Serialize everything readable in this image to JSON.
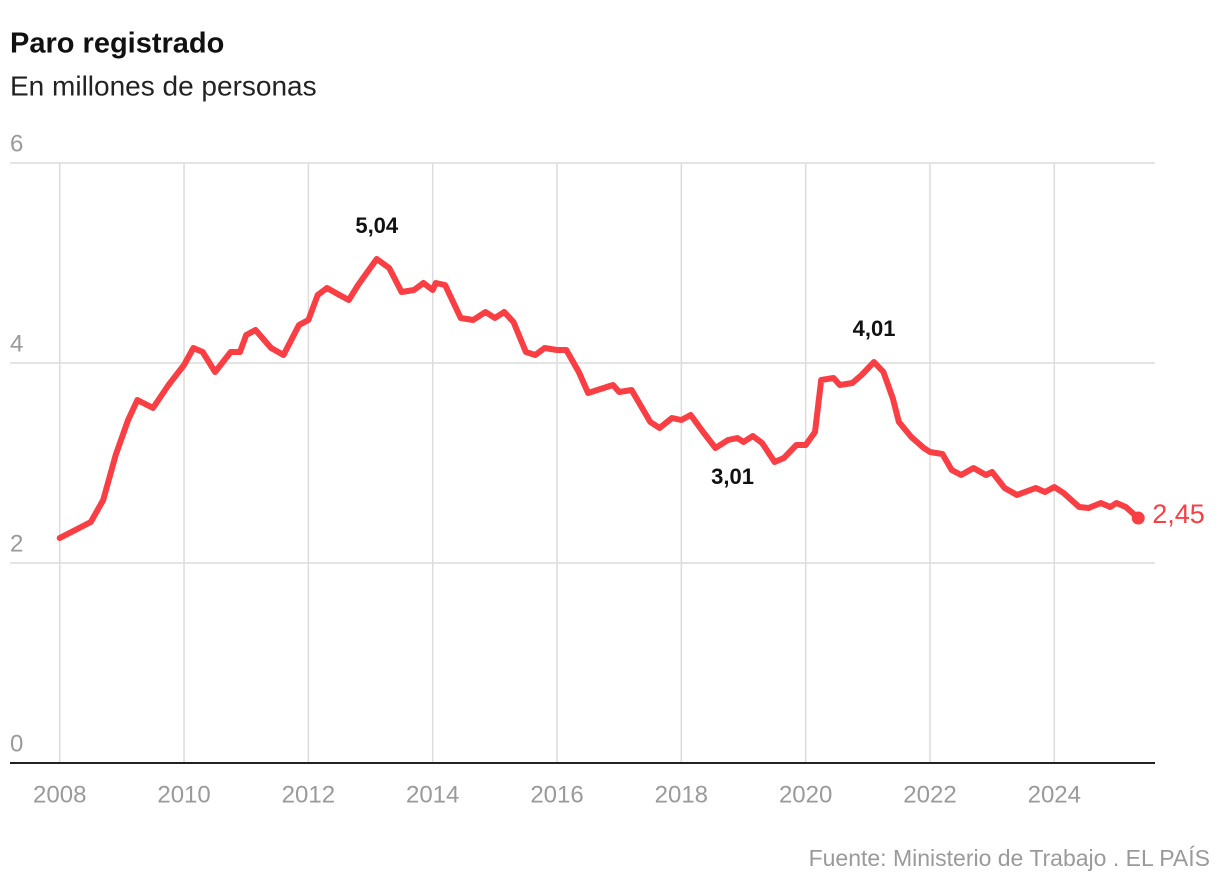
{
  "chart_data": {
    "type": "line",
    "title": "Paro registrado",
    "subtitle": "En millones de personas",
    "source": "Fuente: Ministerio de Trabajo . EL PAÍS",
    "xlim": [
      2007.2,
      2025.62
    ],
    "xticks": [
      2008,
      2010,
      2012,
      2014,
      2016,
      2018,
      2020,
      2022,
      2024
    ],
    "ylim": [
      0,
      6
    ],
    "yticks": [
      0,
      2,
      4,
      6
    ],
    "grid": true,
    "series": [
      {
        "color": "#f93e44",
        "x": [
          2008.0,
          2008.25,
          2008.5,
          2008.7,
          2008.9,
          2009.1,
          2009.25,
          2009.5,
          2009.75,
          2010.0,
          2010.15,
          2010.3,
          2010.5,
          2010.75,
          2010.9,
          2011.0,
          2011.15,
          2011.4,
          2011.6,
          2011.85,
          2012.0,
          2012.15,
          2012.3,
          2012.5,
          2012.65,
          2012.8,
          2012.95,
          2013.1,
          2013.3,
          2013.5,
          2013.7,
          2013.85,
          2014.0,
          2014.05,
          2014.2,
          2014.45,
          2014.65,
          2014.85,
          2015.0,
          2015.15,
          2015.3,
          2015.5,
          2015.65,
          2015.8,
          2016.0,
          2016.15,
          2016.35,
          2016.5,
          2016.75,
          2016.9,
          2017.0,
          2017.2,
          2017.5,
          2017.65,
          2017.85,
          2018.0,
          2018.15,
          2018.35,
          2018.55,
          2018.75,
          2018.9,
          2019.0,
          2019.15,
          2019.3,
          2019.5,
          2019.65,
          2019.85,
          2020.0,
          2020.15,
          2020.25,
          2020.45,
          2020.55,
          2020.75,
          2020.9,
          2021.1,
          2021.25,
          2021.4,
          2021.5,
          2021.7,
          2021.9,
          2022.0,
          2022.2,
          2022.35,
          2022.5,
          2022.7,
          2022.9,
          2023.0,
          2023.2,
          2023.4,
          2023.7,
          2023.85,
          2024.0,
          2024.15,
          2024.4,
          2024.55,
          2024.75,
          2024.9,
          2025.0,
          2025.15,
          2025.35
        ],
        "values": [
          2.25,
          2.33,
          2.41,
          2.63,
          3.08,
          3.43,
          3.63,
          3.55,
          3.78,
          3.98,
          4.15,
          4.11,
          3.91,
          4.11,
          4.11,
          4.28,
          4.33,
          4.15,
          4.08,
          4.38,
          4.43,
          4.68,
          4.75,
          4.68,
          4.63,
          4.78,
          4.91,
          5.04,
          4.95,
          4.71,
          4.73,
          4.8,
          4.73,
          4.8,
          4.78,
          4.45,
          4.43,
          4.51,
          4.45,
          4.51,
          4.41,
          4.11,
          4.08,
          4.15,
          4.13,
          4.13,
          3.91,
          3.7,
          3.75,
          3.78,
          3.71,
          3.73,
          3.41,
          3.35,
          3.45,
          3.43,
          3.48,
          3.31,
          3.15,
          3.23,
          3.25,
          3.21,
          3.27,
          3.2,
          3.01,
          3.05,
          3.18,
          3.18,
          3.31,
          3.83,
          3.85,
          3.78,
          3.8,
          3.88,
          4.01,
          3.91,
          3.65,
          3.41,
          3.26,
          3.15,
          3.11,
          3.09,
          2.93,
          2.88,
          2.95,
          2.88,
          2.91,
          2.75,
          2.68,
          2.75,
          2.71,
          2.76,
          2.7,
          2.56,
          2.55,
          2.6,
          2.56,
          2.6,
          2.56,
          2.45
        ]
      }
    ],
    "annotations": [
      {
        "x": 2013.1,
        "y": 5.04,
        "label": "5,04",
        "position": "above"
      },
      {
        "x": 2021.1,
        "y": 4.01,
        "label": "4,01",
        "position": "above"
      },
      {
        "x": 2019.5,
        "y": 3.01,
        "label": "3,01",
        "position": "below-left"
      },
      {
        "x": 2025.35,
        "y": 2.45,
        "label": "2,45",
        "position": "right"
      }
    ]
  }
}
